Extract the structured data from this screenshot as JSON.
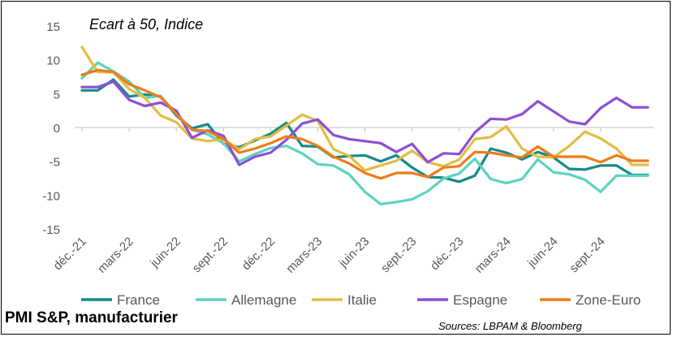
{
  "footer": {
    "title": "PMI S&P, manufacturier",
    "source": "Sources: LBPAM & Bloomberg"
  },
  "chart_data": {
    "type": "line",
    "title": "Ecart à 50, Indice",
    "xlabel": "",
    "ylabel": "",
    "ylim": [
      -15,
      15
    ],
    "yticks": [
      15,
      10,
      5,
      0,
      -5,
      -10,
      -15
    ],
    "grid": false,
    "legend_position": "bottom",
    "x": [
      "2021-12",
      "2022-01",
      "2022-02",
      "2022-03",
      "2022-04",
      "2022-05",
      "2022-06",
      "2022-07",
      "2022-08",
      "2022-09",
      "2022-10",
      "2022-11",
      "2022-12",
      "2023-01",
      "2023-02",
      "2023-03",
      "2023-04",
      "2023-05",
      "2023-06",
      "2023-07",
      "2023-08",
      "2023-09",
      "2023-10",
      "2023-11",
      "2023-12",
      "2024-01",
      "2024-02",
      "2024-03",
      "2024-04",
      "2024-05",
      "2024-06",
      "2024-07",
      "2024-08",
      "2024-09",
      "2024-10",
      "2024-11",
      "2024-12"
    ],
    "x_tick_labels": [
      "déc.-21",
      "mars-22",
      "juin-22",
      "sept.-22",
      "déc.-22",
      "mars-23",
      "juin-23",
      "sept.-23",
      "déc.-23",
      "mars-24",
      "juin-24",
      "sept.-24"
    ],
    "series": [
      {
        "name": "France",
        "color": "#138a8a",
        "values": [
          5.6,
          5.6,
          7.2,
          4.7,
          5.0,
          4.7,
          1.9,
          0.0,
          0.6,
          -2.3,
          -2.8,
          -1.8,
          -0.8,
          0.8,
          -2.6,
          -2.7,
          -4.3,
          -4.1,
          -4.0,
          -4.9,
          -4.0,
          -5.8,
          -7.2,
          -7.3,
          -7.9,
          -7.0,
          -3.0,
          -3.6,
          -4.6,
          -3.5,
          -4.3,
          -6.0,
          -6.1,
          -5.5,
          -5.5,
          -6.9,
          -6.9
        ]
      },
      {
        "name": "Allemagne",
        "color": "#5dd3bf",
        "values": [
          7.4,
          9.7,
          8.4,
          6.9,
          4.5,
          4.8,
          2.1,
          -0.2,
          -0.9,
          -2.2,
          -4.9,
          -3.8,
          -2.9,
          -2.6,
          -3.7,
          -5.3,
          -5.5,
          -6.8,
          -9.4,
          -11.2,
          -10.9,
          -10.5,
          -9.3,
          -7.4,
          -6.7,
          -4.5,
          -7.5,
          -8.1,
          -7.5,
          -4.6,
          -6.5,
          -6.8,
          -7.6,
          -9.4,
          -7.0,
          -7.0,
          -7.0
        ]
      },
      {
        "name": "Italie",
        "color": "#e2bd44",
        "values": [
          12.0,
          8.3,
          8.3,
          5.8,
          4.5,
          1.9,
          0.9,
          -1.5,
          -1.9,
          -1.6,
          -3.1,
          -1.6,
          -1.2,
          0.4,
          2.0,
          1.1,
          -3.1,
          -4.1,
          -6.2,
          -5.5,
          -4.8,
          -3.3,
          -5.0,
          -5.6,
          -4.6,
          -1.6,
          -1.3,
          0.3,
          -3.0,
          -4.2,
          -4.3,
          -2.6,
          -0.5,
          -1.5,
          -3.0,
          -5.4,
          -5.4
        ]
      },
      {
        "name": "Espagne",
        "color": "#8c4fd6",
        "values": [
          6.1,
          6.1,
          6.9,
          4.2,
          3.3,
          3.8,
          2.6,
          -1.4,
          -0.3,
          -1.1,
          -5.4,
          -4.2,
          -3.6,
          -1.7,
          0.7,
          1.3,
          -1.0,
          -1.6,
          -1.9,
          -2.2,
          -3.5,
          -2.3,
          -5.0,
          -3.7,
          -3.8,
          -0.6,
          1.4,
          1.3,
          2.1,
          4.0,
          2.5,
          1.0,
          0.6,
          3.0,
          4.5,
          3.1,
          3.1
        ]
      },
      {
        "name": "Zone-Euro",
        "color": "#f07b1a",
        "values": [
          7.9,
          8.6,
          8.3,
          6.5,
          5.6,
          4.6,
          2.1,
          -0.2,
          -0.4,
          -1.6,
          -3.6,
          -3.0,
          -2.2,
          -1.2,
          -1.6,
          -2.6,
          -4.2,
          -5.2,
          -6.6,
          -7.4,
          -6.6,
          -6.6,
          -7.2,
          -5.8,
          -5.6,
          -3.5,
          -3.6,
          -4.0,
          -4.3,
          -2.7,
          -4.2,
          -4.2,
          -4.2,
          -5.0,
          -4.0,
          -4.8,
          -4.8
        ]
      }
    ]
  }
}
